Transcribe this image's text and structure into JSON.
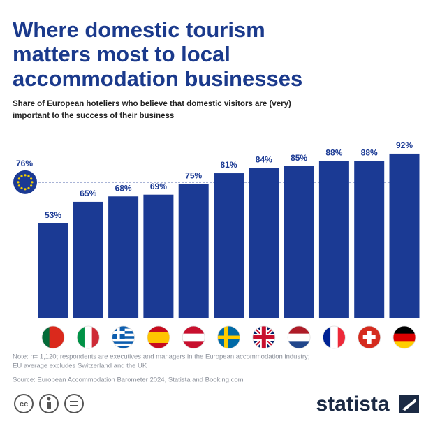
{
  "chart_data": {
    "type": "bar",
    "title": [
      "Where domestic tourism",
      "matters most to local",
      "accommodation businesses"
    ],
    "subtitle": [
      "Share of European hoteliers who believe that domestic visitors are (very)",
      "important to the success of their business"
    ],
    "values": [
      53,
      65,
      68,
      69,
      75,
      81,
      84,
      85,
      88,
      88,
      92
    ],
    "value_labels": [
      "53%",
      "65%",
      "68%",
      "69%",
      "75%",
      "81%",
      "84%",
      "85%",
      "88%",
      "88%",
      "92%"
    ],
    "color": "#1b3a94",
    "ylim": [
      0,
      100
    ],
    "reference_line": {
      "value": 76,
      "label": "76%"
    },
    "notes": [
      "Note: n= 1,120; respondents are executives and managers in the European accommodation industry;",
      "EU average excludes Switzerland and the UK"
    ],
    "source": "Source: European Accommodation Barometer 2024, Statista and Booking.com",
    "brand": "statista"
  }
}
